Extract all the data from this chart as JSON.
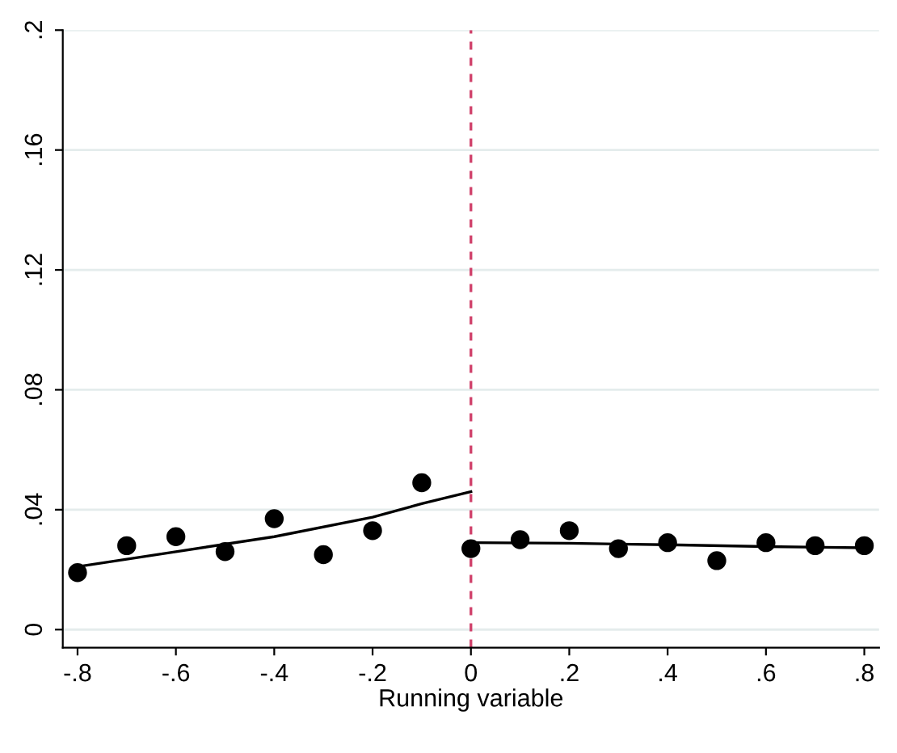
{
  "chart_data": {
    "type": "scatter",
    "xlabel": "Running variable",
    "series": [
      {
        "color": "#000000",
        "marker": "circle",
        "x": [
          -0.8,
          -0.7,
          -0.6,
          -0.5,
          -0.4,
          -0.3,
          -0.2,
          -0.1
        ],
        "values": [
          0.019,
          0.028,
          0.031,
          0.026,
          0.037,
          0.025,
          0.033,
          0.049
        ]
      },
      {
        "color": "#000000",
        "marker": "circle",
        "x": [
          0,
          0.1,
          0.2,
          0.3,
          0.4,
          0.5,
          0.6,
          0.7,
          0.8
        ],
        "values": [
          0.027,
          0.03,
          0.033,
          0.027,
          0.029,
          0.023,
          0.029,
          0.028,
          0.028
        ]
      },
      {
        "type": "line",
        "color": "#000000",
        "marker": "none",
        "x": [
          -0.8,
          -0.6,
          -0.4,
          -0.2,
          -0.1,
          0
        ],
        "values": [
          0.021,
          0.026,
          0.031,
          0.0375,
          0.042,
          0.046
        ]
      },
      {
        "type": "line",
        "color": "#000000",
        "marker": "none",
        "x": [
          0,
          0.2,
          0.4,
          0.6,
          0.8
        ],
        "values": [
          0.029,
          0.0288,
          0.0283,
          0.0277,
          0.0273
        ]
      }
    ],
    "xlim": [
      -0.83,
      0.83
    ],
    "ylim": [
      -0.006,
      0.2
    ],
    "xticks": [
      {
        "value": -0.8,
        "label": "-.8"
      },
      {
        "value": -0.6,
        "label": "-.6"
      },
      {
        "value": -0.4,
        "label": "-.4"
      },
      {
        "value": -0.2,
        "label": "-.2"
      },
      0,
      {
        "value": 0.2,
        "label": ".2"
      },
      {
        "value": 0.4,
        "label": ".4"
      },
      {
        "value": 0.6,
        "label": ".6"
      },
      {
        "value": 0.8,
        "label": ".8"
      }
    ],
    "yticks": [
      0,
      {
        "value": 0.04,
        "label": ".04"
      },
      {
        "value": 0.08,
        "label": ".08"
      },
      {
        "value": 0.12,
        "label": ".12"
      },
      {
        "value": 0.16,
        "label": ".16"
      },
      {
        "value": 0.2,
        "label": ".2"
      }
    ],
    "ref_lines": [
      {
        "axis": "x",
        "value": 0,
        "color": "#d0406a",
        "line_style": "dashed"
      }
    ],
    "grid": "y",
    "legend": false
  }
}
